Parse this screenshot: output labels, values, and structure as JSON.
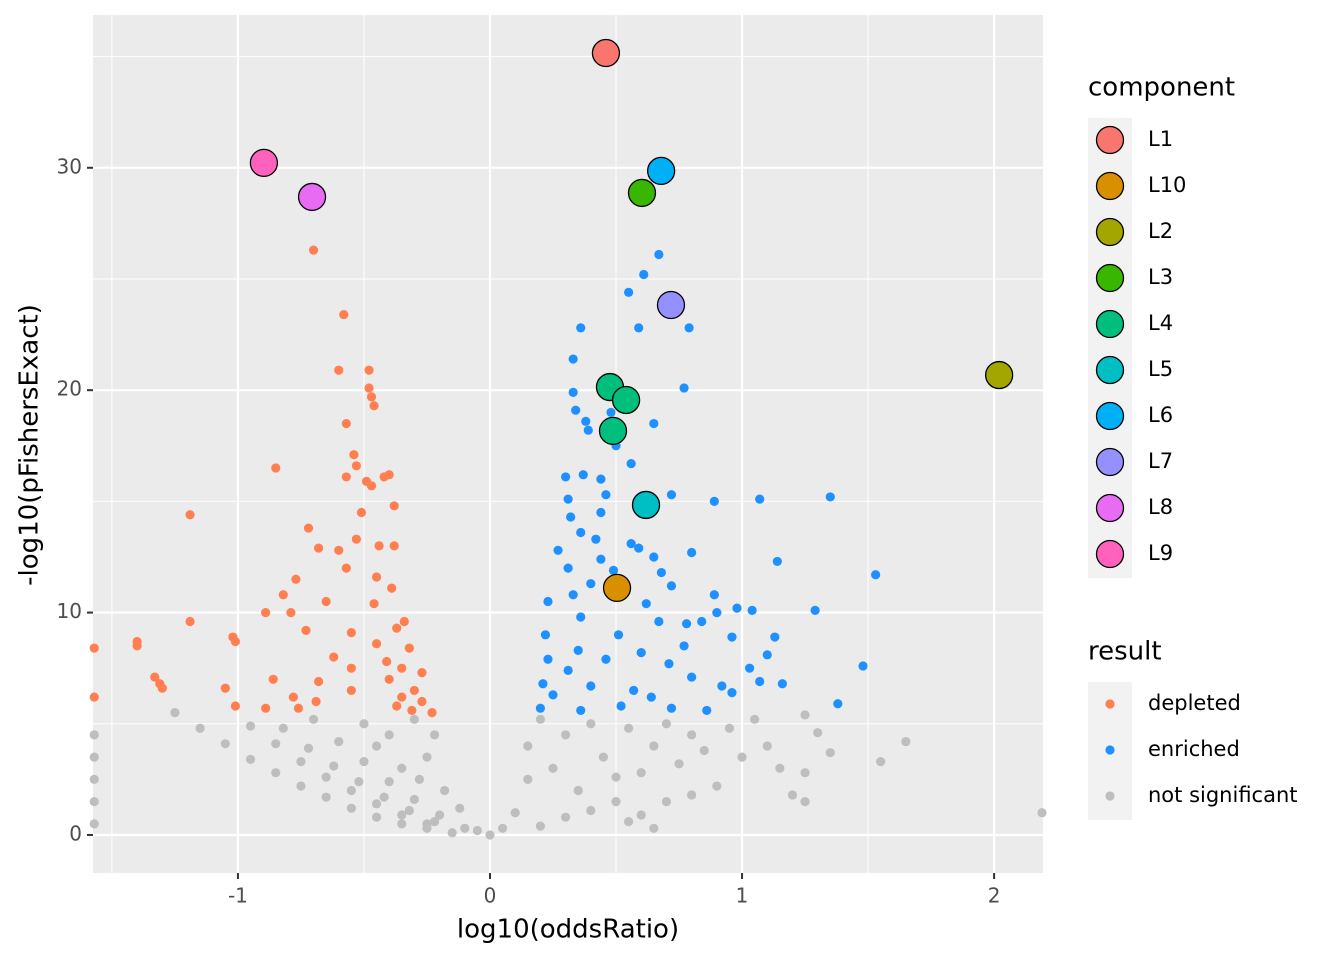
{
  "chart_data": {
    "type": "scatter",
    "xlabel": "log10(oddsRatio)",
    "ylabel": "-log10(pFishersExact)",
    "xlim": [
      -1.575,
      2.194
    ],
    "ylim": [
      -1.71,
      36.87
    ],
    "xticks": [
      -1,
      0,
      1,
      2
    ],
    "yticks": [
      0,
      10,
      20,
      30
    ],
    "x_minor": [
      -1.5,
      -0.5,
      0.5,
      1.5
    ],
    "y_minor": [
      5,
      15,
      25,
      35
    ],
    "grid": true,
    "legend_position": "right",
    "legends": [
      {
        "title": "component",
        "series": [
          {
            "name": "L1",
            "color": "#F8766D",
            "x": [
              0.46
            ],
            "y": [
              35.16
            ]
          },
          {
            "name": "L10",
            "color": "#D89000",
            "x": [
              0.504
            ],
            "y": [
              11.11
            ]
          },
          {
            "name": "L2",
            "color": "#A3A500",
            "x": [
              2.02
            ],
            "y": [
              20.68
            ]
          },
          {
            "name": "L3",
            "color": "#39B600",
            "x": [
              0.603
            ],
            "y": [
              28.87
            ]
          },
          {
            "name": "L4",
            "color": "#00BF7D",
            "x": [
              0.476,
              0.54,
              0.488
            ],
            "y": [
              20.14,
              19.56,
              18.17
            ]
          },
          {
            "name": "L5",
            "color": "#00BFC4",
            "x": [
              0.619
            ],
            "y": [
              14.84
            ]
          },
          {
            "name": "L6",
            "color": "#00B0F6",
            "x": [
              0.679
            ],
            "y": [
              29.86
            ]
          },
          {
            "name": "L7",
            "color": "#9590FF",
            "x": [
              0.718
            ],
            "y": [
              23.83
            ]
          },
          {
            "name": "L8",
            "color": "#E76BF3",
            "x": [
              -0.706
            ],
            "y": [
              28.69
            ]
          },
          {
            "name": "L9",
            "color": "#FF62BC",
            "x": [
              -0.897
            ],
            "y": [
              30.22
            ]
          }
        ]
      },
      {
        "title": "result",
        "series": [
          {
            "name": "depleted",
            "color": "#FF7F50",
            "x": [
              -0.7,
              -0.58,
              -0.6,
              -0.48,
              -0.48,
              -0.47,
              -0.46,
              -0.57,
              -0.54,
              -0.53,
              -0.85,
              -0.57,
              -0.4,
              -0.42,
              -0.49,
              -0.47,
              -1.19,
              -0.51,
              -0.38,
              -0.72,
              -0.53,
              -0.38,
              -0.44,
              -0.68,
              -0.6,
              -0.57,
              -0.45,
              -0.77,
              -0.39,
              -0.82,
              -0.65,
              -0.46,
              -0.89,
              -0.79,
              -0.34,
              -1.19,
              -0.37,
              -0.73,
              -0.55,
              -1.02,
              -1.01,
              -1.4,
              -1.4,
              -1.57,
              -0.45,
              -0.32,
              -0.62,
              -0.41,
              -0.55,
              -0.35,
              -1.33,
              -0.27,
              -0.86,
              -0.68,
              -1.31,
              -1.3,
              -0.4,
              -0.3,
              -1.05,
              -0.55,
              -0.78,
              -0.35,
              -1.57,
              -0.69,
              -1.01,
              -0.89,
              -0.76,
              -0.27,
              -0.23,
              -0.31,
              -0.37
            ],
            "y": [
              26.3,
              23.4,
              20.9,
              20.9,
              20.1,
              19.7,
              19.3,
              18.5,
              17.1,
              16.6,
              16.5,
              16.1,
              16.2,
              16.1,
              15.9,
              15.7,
              14.4,
              14.5,
              14.8,
              13.8,
              13.3,
              13.0,
              13.0,
              12.9,
              12.8,
              12.0,
              11.6,
              11.5,
              11.1,
              10.8,
              10.5,
              10.4,
              10.0,
              10.0,
              9.6,
              9.6,
              9.3,
              9.2,
              9.1,
              8.9,
              8.7,
              8.7,
              8.5,
              8.4,
              8.6,
              8.4,
              8.0,
              7.8,
              7.5,
              7.5,
              7.1,
              7.3,
              7.0,
              6.9,
              6.8,
              6.6,
              7.0,
              6.5,
              6.6,
              6.5,
              6.2,
              6.2,
              6.2,
              6.0,
              5.8,
              5.7,
              5.7,
              6.0,
              5.5,
              5.6,
              5.8
            ]
          },
          {
            "name": "enriched",
            "color": "#1E90FF",
            "x": [
              0.67,
              0.61,
              0.55,
              0.59,
              0.36,
              0.79,
              0.33,
              0.77,
              0.33,
              0.47,
              0.34,
              0.38,
              0.48,
              0.39,
              0.65,
              0.5,
              0.56,
              0.3,
              0.37,
              0.44,
              0.46,
              0.31,
              0.72,
              0.89,
              1.07,
              1.35,
              0.44,
              0.32,
              0.36,
              0.42,
              0.56,
              0.65,
              0.27,
              0.44,
              0.59,
              0.8,
              1.14,
              0.31,
              0.49,
              0.68,
              1.53,
              0.4,
              0.72,
              0.33,
              0.89,
              0.23,
              0.62,
              0.98,
              1.04,
              1.29,
              0.9,
              0.36,
              0.67,
              0.78,
              0.84,
              0.22,
              0.51,
              0.96,
              1.13,
              0.77,
              0.35,
              0.6,
              1.1,
              0.23,
              0.46,
              0.71,
              1.48,
              1.03,
              0.31,
              0.8,
              1.07,
              1.16,
              0.21,
              0.4,
              0.92,
              0.57,
              0.25,
              0.64,
              0.96,
              1.38,
              0.2,
              0.36,
              0.52,
              0.72,
              0.86
            ],
            "y": [
              26.1,
              25.2,
              24.4,
              22.8,
              22.8,
              22.8,
              21.4,
              20.1,
              19.9,
              19.9,
              19.1,
              18.6,
              19.0,
              18.2,
              18.5,
              17.5,
              16.7,
              16.1,
              16.2,
              16.0,
              15.3,
              15.1,
              15.3,
              15.0,
              15.1,
              15.2,
              14.5,
              14.3,
              13.6,
              13.3,
              13.1,
              12.5,
              12.8,
              12.4,
              12.9,
              12.7,
              12.3,
              12.0,
              11.9,
              11.8,
              11.7,
              11.3,
              11.2,
              10.8,
              10.8,
              10.5,
              10.4,
              10.2,
              10.1,
              10.1,
              10.0,
              9.8,
              9.6,
              9.5,
              9.6,
              9.0,
              9.0,
              8.9,
              8.9,
              8.5,
              8.3,
              8.2,
              8.1,
              7.9,
              7.9,
              7.7,
              7.6,
              7.5,
              7.4,
              7.1,
              6.9,
              6.8,
              6.8,
              6.7,
              6.7,
              6.5,
              6.3,
              6.2,
              6.4,
              5.9,
              5.7,
              5.6,
              5.8,
              5.7,
              5.6
            ]
          },
          {
            "name": "not significant",
            "color": "#BEBEBE",
            "x": [
              -1.25,
              -1.15,
              -1.05,
              -0.95,
              -0.85,
              -0.75,
              -0.65,
              -0.55,
              -0.45,
              -0.35,
              -0.25,
              -0.15,
              -0.95,
              -0.85,
              -0.75,
              -0.65,
              -0.55,
              -0.45,
              -0.35,
              -0.25,
              -0.82,
              -0.72,
              -0.62,
              -0.52,
              -0.42,
              -0.32,
              -0.22,
              -0.7,
              -0.6,
              -0.5,
              -0.4,
              -0.3,
              -0.2,
              -0.1,
              -0.5,
              -0.4,
              -0.3,
              -0.25,
              -0.35,
              -0.45,
              -0.22,
              -0.28,
              -0.18,
              -0.12,
              -0.05,
              0,
              -1.57,
              -1.57,
              -1.57,
              -1.57,
              -1.57,
              0.05,
              0.1,
              0.15,
              0.15,
              0.2,
              0.25,
              0.3,
              0.35,
              0.4,
              0.45,
              0.5,
              0.55,
              0.6,
              0.65,
              0.7,
              0.75,
              0.8,
              0.85,
              0.9,
              0.95,
              1.0,
              1.05,
              1.1,
              1.15,
              1.2,
              1.25,
              1.25,
              1.25,
              1.3,
              1.35,
              1.55,
              1.65,
              2.19,
              0.55,
              0.65,
              0.3,
              0.4,
              0.2,
              0.7,
              0.8,
              0.5,
              0.6
            ],
            "y": [
              5.5,
              4.8,
              4.1,
              3.4,
              2.8,
              2.2,
              1.7,
              1.2,
              0.8,
              0.5,
              0.3,
              0.1,
              4.9,
              4.1,
              3.3,
              2.6,
              2.0,
              1.4,
              0.9,
              0.5,
              4.8,
              3.9,
              3.1,
              2.4,
              1.7,
              1.1,
              0.6,
              5.2,
              4.2,
              3.3,
              2.4,
              1.6,
              0.9,
              0.3,
              5.0,
              4.5,
              5.2,
              3.5,
              3.0,
              4.0,
              4.5,
              2.5,
              2.0,
              1.2,
              0.2,
              0,
              0.5,
              1.5,
              2.5,
              3.5,
              4.5,
              0.3,
              1.0,
              2.5,
              4.0,
              5.2,
              3.0,
              4.5,
              2.0,
              5.0,
              3.5,
              1.5,
              4.8,
              2.8,
              4.0,
              5.0,
              3.2,
              4.5,
              3.8,
              2.2,
              4.8,
              3.5,
              5.2,
              4.0,
              3.0,
              1.8,
              5.4,
              1.5,
              2.8,
              4.6,
              3.7,
              3.3,
              4.2,
              1.0,
              0.6,
              0.3,
              0.8,
              1.1,
              0.4,
              1.5,
              1.8,
              2.6,
              0.9
            ]
          }
        ]
      }
    ]
  }
}
